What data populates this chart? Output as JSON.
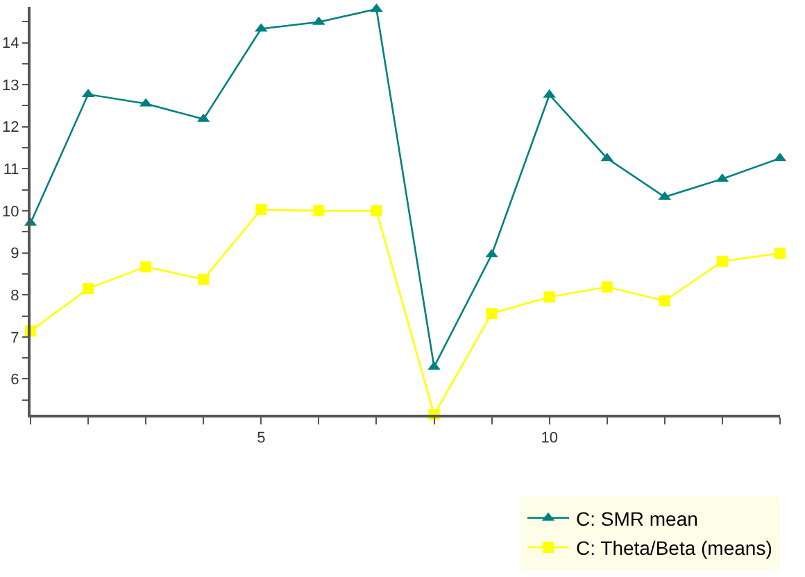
{
  "chart_data": {
    "type": "line",
    "x": [
      1,
      2,
      3,
      4,
      5,
      6,
      7,
      8,
      9,
      10,
      11,
      12,
      13,
      14
    ],
    "series": [
      {
        "name": "C: SMR mean",
        "color": "#008080",
        "marker": "triangle",
        "values": [
          9.71,
          12.77,
          12.55,
          12.18,
          14.33,
          14.49,
          14.8,
          6.29,
          8.96,
          12.76,
          11.25,
          10.33,
          10.76,
          11.25
        ]
      },
      {
        "name": "C: Theta/Beta (means)",
        "color": "#ffff00",
        "marker": "square",
        "values": [
          7.14,
          8.15,
          8.67,
          8.37,
          10.03,
          10.0,
          10.0,
          5.15,
          7.56,
          7.95,
          8.19,
          7.86,
          8.8,
          8.99
        ]
      }
    ],
    "xlim": [
      1,
      14
    ],
    "xticks": [
      {
        "value": 1,
        "label": null
      },
      {
        "value": 2,
        "label": null
      },
      {
        "value": 3,
        "label": null
      },
      {
        "value": 4,
        "label": null
      },
      5,
      {
        "value": 6,
        "label": null
      },
      {
        "value": 7,
        "label": null
      },
      {
        "value": 8,
        "label": null
      },
      {
        "value": 9,
        "label": null
      },
      10,
      {
        "value": 11,
        "label": null
      },
      {
        "value": 12,
        "label": null
      },
      {
        "value": 13,
        "label": null
      },
      {
        "value": 14,
        "label": null
      }
    ],
    "ylim": [
      5.15,
      14.85
    ],
    "yticks": [
      {
        "value": 5.5,
        "label": null
      },
      6,
      {
        "value": 6.5,
        "label": null
      },
      7,
      {
        "value": 7.5,
        "label": null
      },
      8,
      {
        "value": 8.5,
        "label": null
      },
      9,
      {
        "value": 9.5,
        "label": null
      },
      10,
      {
        "value": 10.5,
        "label": null
      },
      11,
      {
        "value": 11.5,
        "label": null
      },
      12,
      {
        "value": 12.5,
        "label": null
      },
      13,
      {
        "value": 13.5,
        "label": null
      },
      14,
      {
        "value": 14.5,
        "label": null
      }
    ],
    "grid": false,
    "legend": "bottom right"
  }
}
